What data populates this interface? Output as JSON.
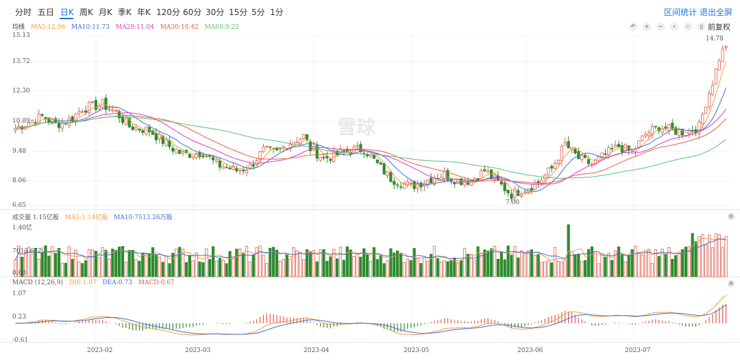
{
  "toolbar": {
    "periods": [
      "分时",
      "五日",
      "日K",
      "周K",
      "月K",
      "季K",
      "年K",
      "120分",
      "60分",
      "30分",
      "15分",
      "5分",
      "1分"
    ],
    "active_period": "日K",
    "range_stats": "区间统计",
    "exit_fullscreen": "退出全屏",
    "adjust": "前复权"
  },
  "watermark": "雪球",
  "main_panel": {
    "title": "均线",
    "ma": [
      {
        "text": "MA5:12.96",
        "color": "#f39c3c"
      },
      {
        "text": "MA10:11.73",
        "color": "#3b6fd1"
      },
      {
        "text": "MA20:11.04",
        "color": "#d63bc7"
      },
      {
        "text": "MA30:10.42",
        "color": "#ea5a46"
      },
      {
        "text": "MA60:9.22",
        "color": "#57c072"
      }
    ],
    "yticks": [
      "15.13",
      "13.72",
      "12.30",
      "10.89",
      "9.48",
      "8.06",
      "6.65"
    ],
    "high_label": "14.78",
    "low_label": "7.00"
  },
  "volume_panel": {
    "title": "成交量 1.15亿股",
    "ma5": "MA5:1.14亿股",
    "ma10": "MA10:7513.26万股",
    "yticks": [
      "1.40亿",
      "7013.67万",
      "0.00"
    ]
  },
  "macd_panel": {
    "title": "MACD (12,26,9)",
    "dif": "DIF:1.07",
    "dea": "DEA:0.73",
    "macd": "MACD:0.67",
    "yticks": [
      "1.07",
      "0.23",
      "-0.61"
    ]
  },
  "x_axis": [
    "2023-02",
    "2023-03",
    "2023-04",
    "2023-05",
    "2023-06",
    "2023-07"
  ],
  "colors": {
    "up": "#e05a4f",
    "down": "#2e8b2e",
    "accent": "#1a73e8"
  },
  "chart_data": {
    "type": "candlestick",
    "y_range": [
      6.65,
      15.13
    ],
    "x_range": [
      "2023-01",
      "2023-07"
    ],
    "high": 14.78,
    "low": 7.0,
    "ma_values": {
      "MA5": 12.96,
      "MA10": 11.73,
      "MA20": 11.04,
      "MA30": 10.42,
      "MA60": 9.22
    },
    "volume": {
      "latest": "1.15亿股",
      "MA5": "1.14亿股",
      "MA10": "7513.26万股",
      "y_range": [
        "0.00",
        "1.40亿"
      ]
    },
    "macd": {
      "DIF": 1.07,
      "DEA": 0.73,
      "MACD": 0.67,
      "y_range": [
        -0.61,
        1.07
      ]
    }
  }
}
